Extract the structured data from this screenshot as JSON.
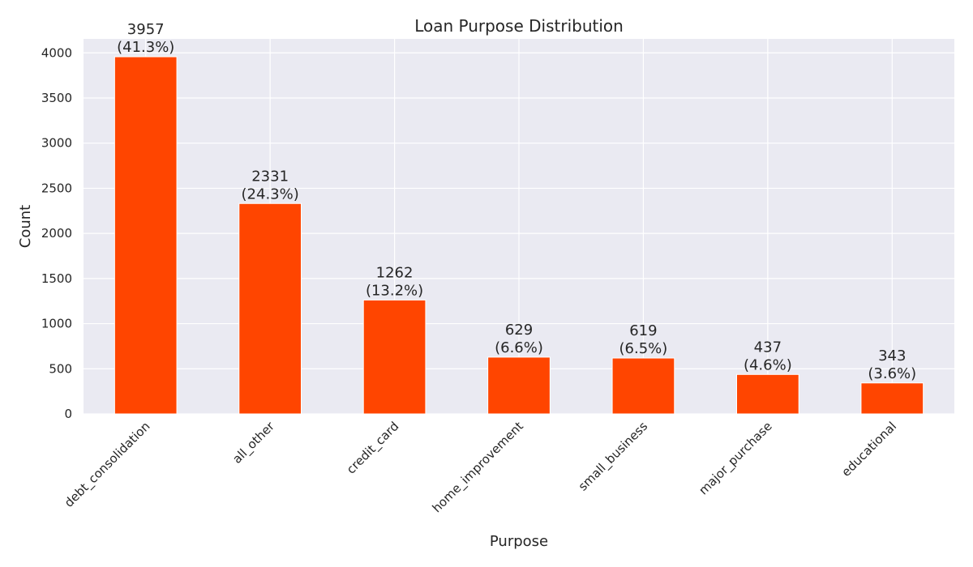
{
  "chart_data": {
    "type": "bar",
    "title": "Loan Purpose Distribution",
    "xlabel": "Purpose",
    "ylabel": "Count",
    "categories": [
      "debt_consolidation",
      "all_other",
      "credit_card",
      "home_improvement",
      "small_business",
      "major_purchase",
      "educational"
    ],
    "values": [
      3957,
      2331,
      1262,
      629,
      619,
      437,
      343
    ],
    "data_labels": [
      [
        "3957",
        "(41.3%)"
      ],
      [
        "2331",
        "(24.3%)"
      ],
      [
        "1262",
        "(13.2%)"
      ],
      [
        "629",
        "(6.6%)"
      ],
      [
        "619",
        "(6.5%)"
      ],
      [
        "437",
        "(4.6%)"
      ],
      [
        "343",
        "(3.6%)"
      ]
    ],
    "y_ticks": [
      0,
      500,
      1000,
      1500,
      2000,
      2500,
      3000,
      3500,
      4000
    ],
    "ylim": [
      0,
      4155
    ],
    "grid": true,
    "colors": {
      "bar": "#ff4500",
      "background": "#eaeaf2",
      "grid": "#ffffff",
      "text": "#262626"
    }
  }
}
